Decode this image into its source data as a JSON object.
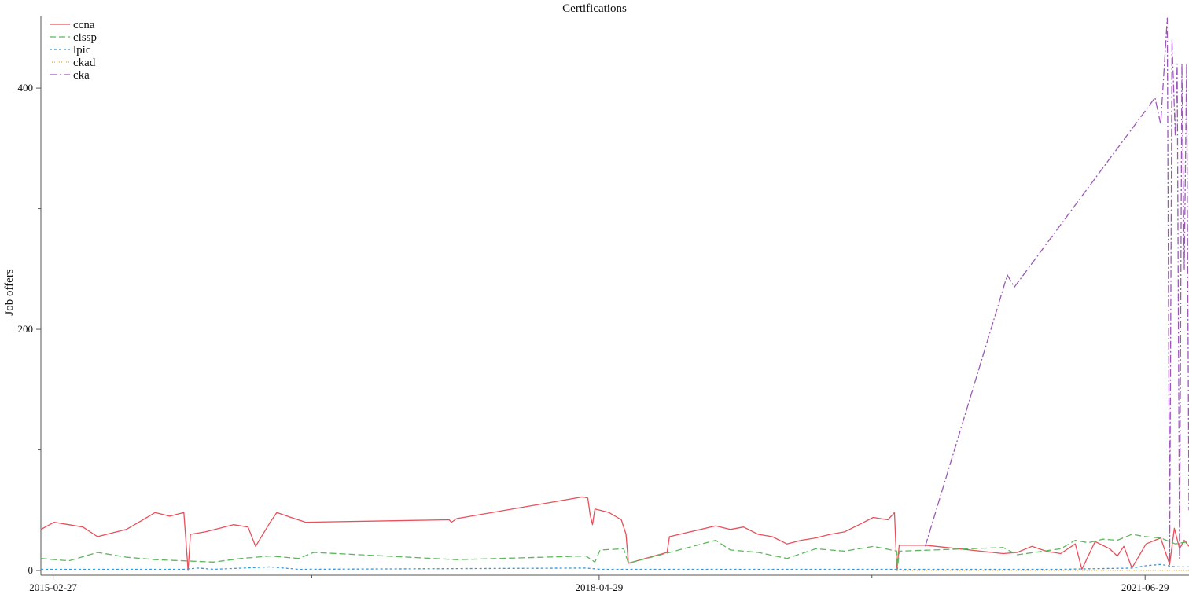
{
  "chart_data": {
    "type": "line",
    "title": "Certifications",
    "xlabel": "",
    "ylabel": "Job offers",
    "x_range": [
      "2015-02-01",
      "2021-09-30"
    ],
    "ylim": [
      0,
      460
    ],
    "x_ticks": [
      "2015-02-27",
      "2018-04-29",
      "2021-06-29"
    ],
    "x_minor_ticks": [
      "2016-08-28",
      "2019-11-28"
    ],
    "y_ticks": [
      0,
      200,
      400
    ],
    "y_minor_ticks": [
      100,
      300
    ],
    "grid": false,
    "legend_position": "top-left",
    "series": [
      {
        "name": "ccna",
        "color": "#e8505b",
        "dash": "",
        "points": [
          [
            "2015-02-01",
            34
          ],
          [
            "2015-03-01",
            40
          ],
          [
            "2015-04-01",
            38
          ],
          [
            "2015-05-01",
            36
          ],
          [
            "2015-06-01",
            28
          ],
          [
            "2015-07-01",
            31
          ],
          [
            "2015-08-01",
            34
          ],
          [
            "2015-09-01",
            41
          ],
          [
            "2015-10-01",
            48
          ],
          [
            "2015-11-01",
            45
          ],
          [
            "2015-12-01",
            48
          ],
          [
            "2015-12-10",
            0
          ],
          [
            "2015-12-15",
            30
          ],
          [
            "2016-01-15",
            32
          ],
          [
            "2016-02-15",
            35
          ],
          [
            "2016-03-15",
            38
          ],
          [
            "2016-04-15",
            36
          ],
          [
            "2016-05-01",
            20
          ],
          [
            "2016-06-01",
            40
          ],
          [
            "2016-06-15",
            48
          ],
          [
            "2016-07-15",
            44
          ],
          [
            "2016-08-15",
            40
          ],
          [
            "2017-06-15",
            42
          ],
          [
            "2017-06-20",
            40
          ],
          [
            "2017-07-01",
            43
          ],
          [
            "2018-03-25",
            61
          ],
          [
            "2018-04-05",
            60
          ],
          [
            "2018-04-10",
            46
          ],
          [
            "2018-04-15",
            38
          ],
          [
            "2018-04-20",
            51
          ],
          [
            "2018-05-20",
            48
          ],
          [
            "2018-06-15",
            42
          ],
          [
            "2018-06-25",
            30
          ],
          [
            "2018-06-30",
            6
          ],
          [
            "2018-09-20",
            15
          ],
          [
            "2018-09-25",
            28
          ],
          [
            "2019-01-01",
            37
          ],
          [
            "2019-02-01",
            34
          ],
          [
            "2019-03-01",
            36
          ],
          [
            "2019-04-01",
            30
          ],
          [
            "2019-05-01",
            28
          ],
          [
            "2019-06-01",
            22
          ],
          [
            "2019-07-01",
            25
          ],
          [
            "2019-08-01",
            27
          ],
          [
            "2019-09-01",
            30
          ],
          [
            "2019-10-01",
            32
          ],
          [
            "2019-11-01",
            38
          ],
          [
            "2019-12-01",
            44
          ],
          [
            "2020-01-01",
            42
          ],
          [
            "2020-01-15",
            48
          ],
          [
            "2020-01-20",
            0
          ],
          [
            "2020-01-25",
            21
          ],
          [
            "2020-03-20",
            21
          ],
          [
            "2020-09-01",
            14
          ],
          [
            "2020-10-01",
            15
          ],
          [
            "2020-11-01",
            20
          ],
          [
            "2020-12-01",
            16
          ],
          [
            "2021-01-01",
            14
          ],
          [
            "2021-02-01",
            22
          ],
          [
            "2021-02-15",
            1
          ],
          [
            "2021-03-15",
            24
          ],
          [
            "2021-04-15",
            18
          ],
          [
            "2021-05-01",
            12
          ],
          [
            "2021-05-15",
            20
          ],
          [
            "2021-06-01",
            2
          ],
          [
            "2021-07-01",
            22
          ],
          [
            "2021-08-01",
            27
          ],
          [
            "2021-08-20",
            5
          ],
          [
            "2021-08-30",
            35
          ],
          [
            "2021-09-10",
            18
          ],
          [
            "2021-09-20",
            25
          ],
          [
            "2021-09-30",
            20
          ]
        ]
      },
      {
        "name": "cissp",
        "color": "#5cb85c",
        "dash": "8,4",
        "points": [
          [
            "2015-02-01",
            10
          ],
          [
            "2015-04-01",
            8
          ],
          [
            "2015-06-01",
            15
          ],
          [
            "2015-08-01",
            11
          ],
          [
            "2015-10-01",
            9
          ],
          [
            "2015-12-01",
            8
          ],
          [
            "2016-02-01",
            7
          ],
          [
            "2016-04-01",
            10
          ],
          [
            "2016-06-01",
            12
          ],
          [
            "2016-08-01",
            10
          ],
          [
            "2016-09-01",
            15
          ],
          [
            "2017-07-01",
            9
          ],
          [
            "2018-04-01",
            12
          ],
          [
            "2018-04-20",
            7
          ],
          [
            "2018-05-01",
            17
          ],
          [
            "2018-06-20",
            18
          ],
          [
            "2018-06-30",
            6
          ],
          [
            "2019-01-01",
            25
          ],
          [
            "2019-02-01",
            17
          ],
          [
            "2019-04-01",
            15
          ],
          [
            "2019-06-01",
            10
          ],
          [
            "2019-08-01",
            18
          ],
          [
            "2019-10-01",
            16
          ],
          [
            "2019-12-01",
            20
          ],
          [
            "2020-01-20",
            16
          ],
          [
            "2020-01-21",
            0
          ],
          [
            "2020-01-25",
            16
          ],
          [
            "2020-09-01",
            19
          ],
          [
            "2020-10-01",
            13
          ],
          [
            "2021-01-01",
            18
          ],
          [
            "2021-02-01",
            25
          ],
          [
            "2021-03-01",
            23
          ],
          [
            "2021-04-01",
            26
          ],
          [
            "2021-05-01",
            25
          ],
          [
            "2021-06-01",
            30
          ],
          [
            "2021-07-01",
            28
          ],
          [
            "2021-08-01",
            27
          ],
          [
            "2021-09-01",
            22
          ],
          [
            "2021-09-30",
            24
          ]
        ]
      },
      {
        "name": "lpic",
        "color": "#3498db",
        "dash": "3,3",
        "points": [
          [
            "2015-02-01",
            1
          ],
          [
            "2015-12-01",
            1
          ],
          [
            "2016-01-01",
            2
          ],
          [
            "2016-02-01",
            1
          ],
          [
            "2016-06-01",
            3
          ],
          [
            "2016-08-01",
            1
          ],
          [
            "2018-04-01",
            2
          ],
          [
            "2018-05-01",
            1
          ],
          [
            "2020-01-01",
            1
          ],
          [
            "2021-01-01",
            1
          ],
          [
            "2021-06-01",
            2
          ],
          [
            "2021-07-01",
            4
          ],
          [
            "2021-08-01",
            5
          ],
          [
            "2021-09-01",
            3
          ],
          [
            "2021-09-30",
            3
          ]
        ]
      },
      {
        "name": "ckad",
        "color": "#e8a838",
        "dash": "1,2",
        "points": [
          [
            "2020-02-01",
            0
          ],
          [
            "2021-09-30",
            0
          ]
        ]
      },
      {
        "name": "cka",
        "color": "#9b59b6",
        "dash": "10,3,2,3",
        "points": [
          [
            "2020-03-20",
            20
          ],
          [
            "2020-09-10",
            245
          ],
          [
            "2020-09-25",
            235
          ],
          [
            "2021-07-20",
            392
          ],
          [
            "2021-08-01",
            370
          ],
          [
            "2021-08-15",
            458
          ],
          [
            "2021-08-20",
            5
          ],
          [
            "2021-08-25",
            440
          ],
          [
            "2021-09-01",
            360
          ],
          [
            "2021-09-05",
            420
          ],
          [
            "2021-09-10",
            10
          ],
          [
            "2021-09-15",
            420
          ],
          [
            "2021-09-20",
            250
          ],
          [
            "2021-09-25",
            420
          ],
          [
            "2021-09-30",
            50
          ]
        ]
      }
    ]
  }
}
